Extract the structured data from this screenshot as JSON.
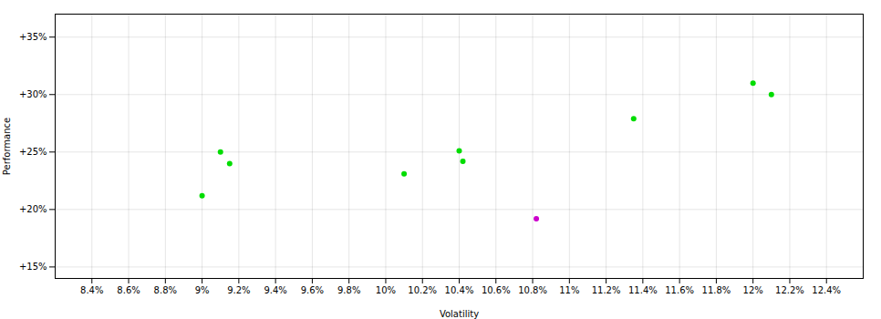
{
  "chart_data": {
    "type": "scatter",
    "xlabel": "Volatility",
    "ylabel": "Performance",
    "xlim": [
      0.082,
      0.126
    ],
    "ylim": [
      0.14,
      0.37
    ],
    "xticks": [
      {
        "value": 0.084,
        "label": "8.4%"
      },
      {
        "value": 0.086,
        "label": "8.6%"
      },
      {
        "value": 0.088,
        "label": "8.8%"
      },
      {
        "value": 0.09,
        "label": "9%"
      },
      {
        "value": 0.092,
        "label": "9.2%"
      },
      {
        "value": 0.094,
        "label": "9.4%"
      },
      {
        "value": 0.096,
        "label": "9.6%"
      },
      {
        "value": 0.098,
        "label": "9.8%"
      },
      {
        "value": 0.1,
        "label": "10%"
      },
      {
        "value": 0.102,
        "label": "10.2%"
      },
      {
        "value": 0.104,
        "label": "10.4%"
      },
      {
        "value": 0.106,
        "label": "10.6%"
      },
      {
        "value": 0.108,
        "label": "10.8%"
      },
      {
        "value": 0.11,
        "label": "11%"
      },
      {
        "value": 0.112,
        "label": "11.2%"
      },
      {
        "value": 0.114,
        "label": "11.4%"
      },
      {
        "value": 0.116,
        "label": "11.6%"
      },
      {
        "value": 0.118,
        "label": "11.8%"
      },
      {
        "value": 0.12,
        "label": "12%"
      },
      {
        "value": 0.122,
        "label": "12.2%"
      },
      {
        "value": 0.124,
        "label": "12.4%"
      }
    ],
    "yticks": [
      {
        "value": 0.15,
        "label": "+15%"
      },
      {
        "value": 0.2,
        "label": "+20%"
      },
      {
        "value": 0.25,
        "label": "+25%"
      },
      {
        "value": 0.3,
        "label": "+30%"
      },
      {
        "value": 0.35,
        "label": "+35%"
      }
    ],
    "grid": true,
    "series": [
      {
        "color": "#00dd00",
        "x": [
          0.091,
          0.0915,
          0.09,
          0.101,
          0.104,
          0.1042,
          0.1135,
          0.12,
          0.121
        ],
        "values": [
          0.25,
          0.24,
          0.212,
          0.231,
          0.251,
          0.242,
          0.279,
          0.31,
          0.3
        ]
      },
      {
        "color": "#cc00cc",
        "x": [
          0.1082
        ],
        "values": [
          0.192
        ]
      }
    ]
  }
}
